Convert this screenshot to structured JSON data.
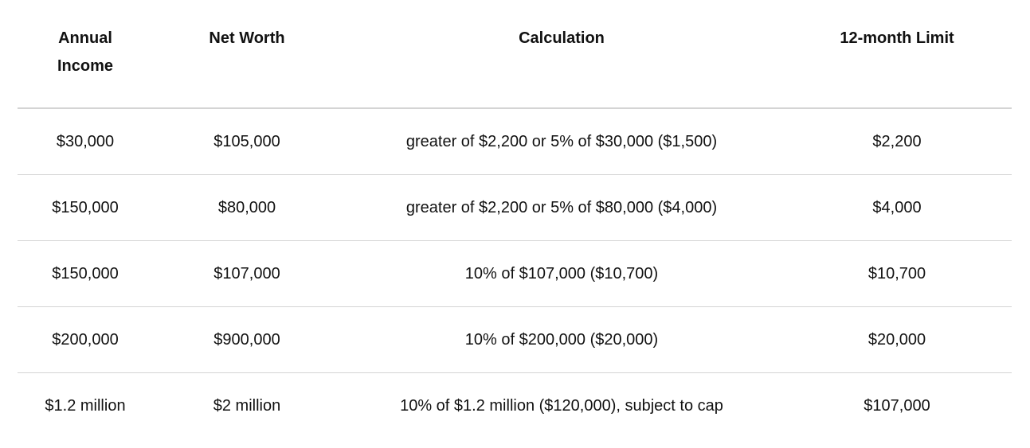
{
  "table": {
    "columns": [
      "Annual Income",
      "Net Worth",
      "Calculation",
      "12-month Limit"
    ],
    "rows": [
      [
        "$30,000",
        "$105,000",
        "greater of $2,200 or 5% of $30,000 ($1,500)",
        "$2,200"
      ],
      [
        "$150,000",
        "$80,000",
        "greater of $2,200 or 5% of $80,000 ($4,000)",
        "$4,000"
      ],
      [
        "$150,000",
        "$107,000",
        "10% of $107,000 ($10,700)",
        "$10,700"
      ],
      [
        "$200,000",
        "$900,000",
        "10% of $200,000 ($20,000)",
        "$20,000"
      ],
      [
        "$1.2 million",
        "$2 million",
        "10% of $1.2 million ($120,000), subject to cap",
        "$107,000"
      ]
    ]
  }
}
